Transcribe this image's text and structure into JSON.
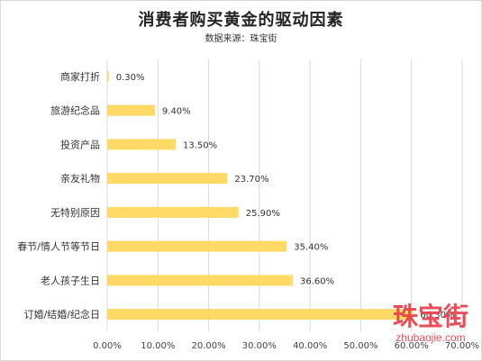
{
  "chart_data": {
    "type": "bar",
    "orientation": "horizontal",
    "title": "消费者购买黄金的驱动因素",
    "subtitle": "数据来源：珠宝街",
    "categories": [
      "商家打折",
      "旅游纪念品",
      "投资产品",
      "亲友礼物",
      "无特别原因",
      "春节/情人节等节日",
      "老人孩子生日",
      "订婚/结婚/纪念日"
    ],
    "values": [
      0.3,
      9.4,
      13.5,
      23.7,
      25.9,
      35.4,
      36.6,
      60.3
    ],
    "value_labels": [
      "0.30%",
      "9.40%",
      "13.50%",
      "23.70%",
      "25.90%",
      "35.40%",
      "36.60%",
      "60.30%"
    ],
    "xlim": [
      0,
      70
    ],
    "x_ticks": [
      "0.00%",
      "10.00%",
      "20.00%",
      "30.00%",
      "40.00%",
      "50.00%",
      "60.00%",
      "70.00%"
    ],
    "grid": true,
    "legend": "none",
    "bar_color": "#ffd966",
    "grid_color": "#d9d9d9"
  },
  "watermark": {
    "main": "珠宝街",
    "sub": "zhubaojie.com"
  }
}
